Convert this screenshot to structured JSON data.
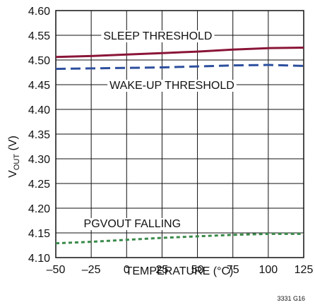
{
  "chart_data": {
    "type": "line",
    "xlabel": "TEMPERATURE (°C)",
    "ylabel": {
      "main": "V",
      "sub": "OUT",
      "unit": " (V)"
    },
    "xlim": [
      -50,
      125
    ],
    "ylim": [
      4.1,
      4.6
    ],
    "x_ticks": [
      -50,
      -25,
      0,
      25,
      50,
      75,
      100,
      125
    ],
    "y_ticks": [
      4.1,
      4.15,
      4.2,
      4.25,
      4.3,
      4.35,
      4.4,
      4.45,
      4.5,
      4.55,
      4.6
    ],
    "x_tick_labels": [
      "–50",
      "–25",
      "0",
      "25",
      "50",
      "75",
      "100",
      "125"
    ],
    "y_tick_labels": [
      "4.10",
      "4.15",
      "4.20",
      "4.25",
      "4.30",
      "4.35",
      "4.40",
      "4.45",
      "4.50",
      "4.55",
      "4.60"
    ],
    "grid": true,
    "series": [
      {
        "label": "SLEEP THRESHOLD",
        "color": "#8a1538",
        "style": "solid",
        "x": [
          -50,
          -25,
          0,
          25,
          50,
          75,
          100,
          125
        ],
        "y": [
          4.506,
          4.508,
          4.511,
          4.514,
          4.517,
          4.521,
          4.524,
          4.525
        ]
      },
      {
        "label": "WAKE-UP THRESHOLD",
        "color": "#2d4f9e",
        "style": "dashed",
        "x": [
          -50,
          -25,
          0,
          25,
          50,
          75,
          100,
          125
        ],
        "y": [
          4.482,
          4.483,
          4.484,
          4.485,
          4.487,
          4.489,
          4.49,
          4.488
        ]
      },
      {
        "label": "PGVOUT FALLING",
        "color": "#3a8a4a",
        "style": "dotted",
        "x": [
          -50,
          -25,
          0,
          25,
          50,
          75,
          100,
          125
        ],
        "y": [
          4.129,
          4.132,
          4.136,
          4.14,
          4.143,
          4.146,
          4.148,
          4.148
        ]
      }
    ],
    "annotations": [
      "SLEEP THRESHOLD",
      "WAKE-UP THRESHOLD",
      "PGVOUT FALLING"
    ],
    "figure_id": "3331 G16"
  }
}
